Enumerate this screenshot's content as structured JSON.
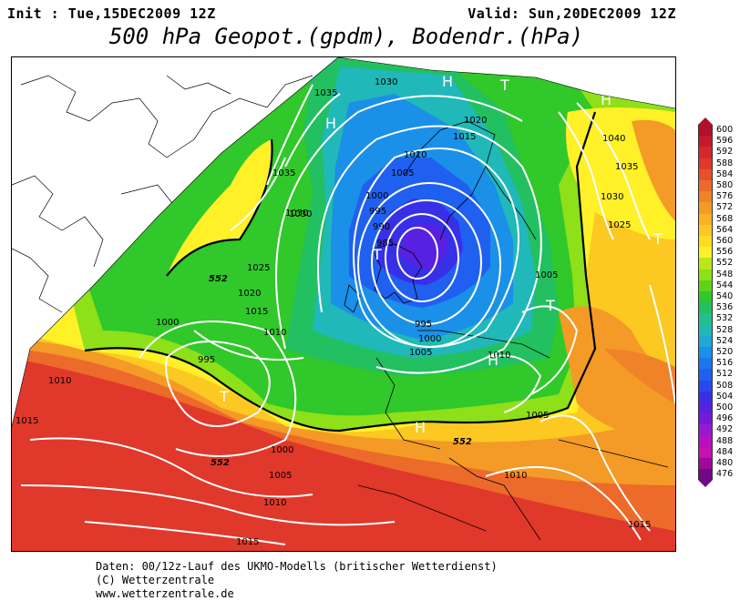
{
  "header": {
    "init": "Init : Tue,15DEC2009 12Z",
    "valid": "Valid: Sun,20DEC2009 12Z",
    "title": "500 hPa Geopot.(gpdm), Bodendr.(hPa)"
  },
  "colorbar": {
    "labels": [
      "600",
      "596",
      "592",
      "588",
      "584",
      "580",
      "576",
      "572",
      "568",
      "564",
      "560",
      "556",
      "552",
      "548",
      "544",
      "540",
      "536",
      "532",
      "528",
      "524",
      "520",
      "516",
      "512",
      "508",
      "504",
      "500",
      "496",
      "492",
      "488",
      "484",
      "480",
      "476"
    ],
    "colors": [
      "#b0102a",
      "#c51a2b",
      "#d6282c",
      "#e0382b",
      "#e6502a",
      "#ec6a2a",
      "#f08228",
      "#f49a26",
      "#f8b224",
      "#fcc822",
      "#fedd20",
      "#fff028",
      "#b8e818",
      "#8ee018",
      "#5cd418",
      "#30c82a",
      "#22c060",
      "#20c090",
      "#20b8b8",
      "#20a8d8",
      "#1a90e8",
      "#1878ec",
      "#2060f0",
      "#2848f0",
      "#3830e8",
      "#5820e0",
      "#7818d8",
      "#9818d0",
      "#b810c0",
      "#c810b0",
      "#a00898",
      "#700888"
    ]
  },
  "map": {
    "isobars": [
      "1035",
      "1030",
      "1030",
      "1020",
      "1015",
      "1010",
      "1005",
      "1000",
      "995",
      "990",
      "985",
      "1035",
      "1030",
      "1025",
      "1020",
      "1015",
      "1010",
      "1000",
      "995",
      "1010",
      "1040",
      "1035",
      "1030",
      "1025",
      "1005",
      "995",
      "1000",
      "1005",
      "1010",
      "1005",
      "1010",
      "1000",
      "1005",
      "1010",
      "1015",
      "1015",
      "1015"
    ],
    "contour_552": [
      "552",
      "552",
      "552"
    ],
    "pressure_centers": [
      "H",
      "H",
      "T",
      "H",
      "T",
      "T",
      "T",
      "T",
      "H",
      "H"
    ]
  },
  "footer": {
    "line1": "Daten: 00/12z-Lauf des UKMO-Modells (britischer Wetterdienst)",
    "line2": "(C) Wetterzentrale",
    "line3": "www.wetterzentrale.de"
  }
}
